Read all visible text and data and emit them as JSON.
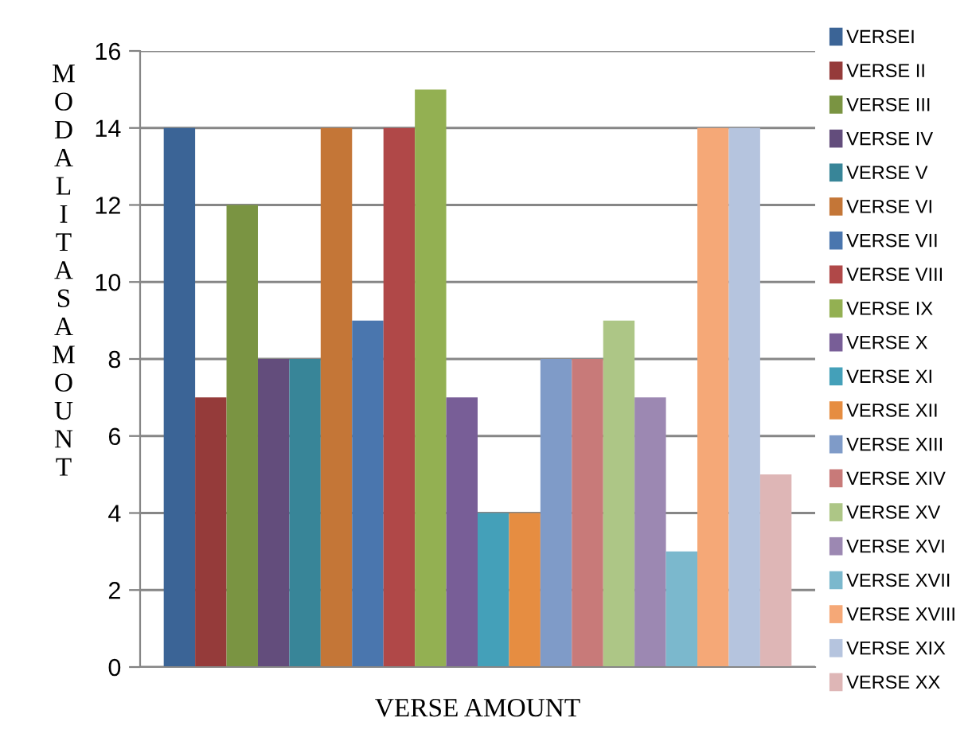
{
  "chart_data": {
    "type": "bar",
    "xlabel": "VERSE AMOUNT",
    "ylabel": "MODALITASAMOUNT",
    "categories": [
      null
    ],
    "ylim": [
      0,
      16
    ],
    "yticks": [
      0,
      2,
      4,
      6,
      8,
      10,
      12,
      14,
      16
    ],
    "grid": "y",
    "legend": "right",
    "tick_labels": "y",
    "series": [
      {
        "name": "VERSEI",
        "color": "#3b6496",
        "values": [
          14
        ]
      },
      {
        "name": "VERSE II",
        "color": "#953b3a",
        "values": [
          7
        ]
      },
      {
        "name": "VERSE III",
        "color": "#7a9442",
        "values": [
          12
        ]
      },
      {
        "name": "VERSE IV",
        "color": "#634d7c",
        "values": [
          8
        ]
      },
      {
        "name": "VERSE V",
        "color": "#388598",
        "values": [
          8
        ]
      },
      {
        "name": "VERSE VI",
        "color": "#c47637",
        "values": [
          14
        ]
      },
      {
        "name": "VERSE VII",
        "color": "#4a76ae",
        "values": [
          9
        ]
      },
      {
        "name": "VERSE VIII",
        "color": "#b04848",
        "values": [
          14
        ]
      },
      {
        "name": "VERSE IX",
        "color": "#93b052",
        "values": [
          15
        ]
      },
      {
        "name": "VERSE X",
        "color": "#785e97",
        "values": [
          7
        ]
      },
      {
        "name": "VERSE XI",
        "color": "#44a0b9",
        "values": [
          4
        ]
      },
      {
        "name": "VERSE XII",
        "color": "#e68d41",
        "values": [
          4
        ]
      },
      {
        "name": "VERSE XIII",
        "color": "#7f9bc8",
        "values": [
          8
        ]
      },
      {
        "name": "VERSE XIV",
        "color": "#c87a79",
        "values": [
          8
        ]
      },
      {
        "name": "VERSE XV",
        "color": "#adc686",
        "values": [
          9
        ]
      },
      {
        "name": "VERSE XVI",
        "color": "#9c88b2",
        "values": [
          7
        ]
      },
      {
        "name": "VERSE XVII",
        "color": "#7bb8cd",
        "values": [
          3
        ]
      },
      {
        "name": "VERSE XVIII",
        "color": "#f5a877",
        "values": [
          14
        ]
      },
      {
        "name": "VERSE XIX",
        "color": "#b5c4de",
        "values": [
          14
        ]
      },
      {
        "name": "VERSE XX",
        "color": "#deb6b6",
        "values": [
          5
        ]
      }
    ]
  }
}
